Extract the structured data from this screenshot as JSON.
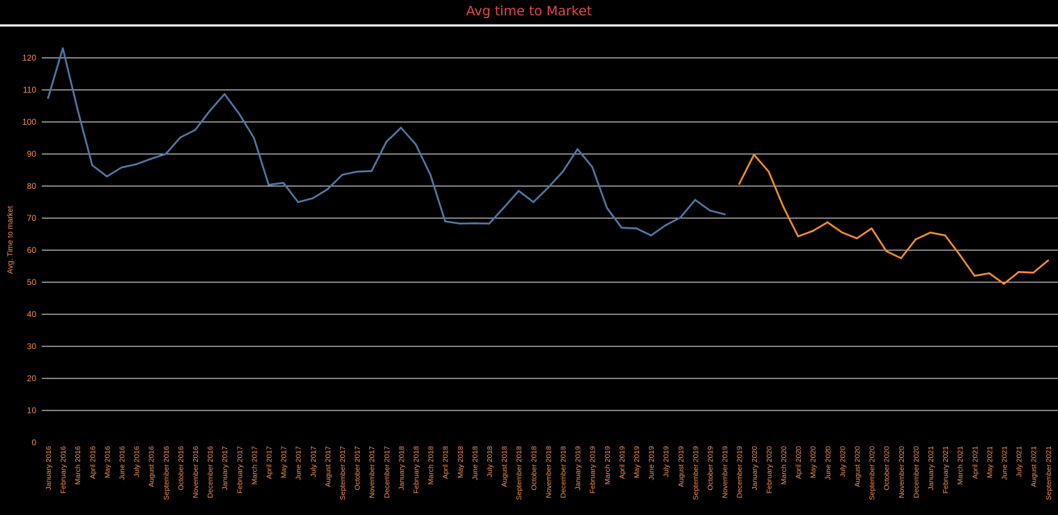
{
  "chart_data": {
    "type": "line",
    "title": "Avg time to Market",
    "xlabel": "",
    "ylabel": "Avg. Time to market",
    "ylim": [
      0,
      125
    ],
    "yticks": [
      0,
      10,
      20,
      30,
      40,
      50,
      60,
      70,
      80,
      90,
      100,
      110,
      120
    ],
    "grid": true,
    "categories": [
      "January 2016",
      "February 2016",
      "March 2016",
      "April 2016",
      "May 2016",
      "June 2016",
      "July 2016",
      "August 2016",
      "September 2016",
      "October 2016",
      "November 2016",
      "December 2016",
      "January 2017",
      "February 2017",
      "March 2017",
      "April 2017",
      "May 2017",
      "June 2017",
      "July 2017",
      "August 2017",
      "September 2017",
      "October 2017",
      "November 2017",
      "December 2017",
      "January 2018",
      "February 2018",
      "March 2018",
      "April 2018",
      "May 2018",
      "June 2018",
      "July 2018",
      "August 2018",
      "September 2018",
      "October 2018",
      "November 2018",
      "December 2018",
      "January 2019",
      "February 2019",
      "March 2019",
      "April 2019",
      "May 2019",
      "June 2019",
      "July 2019",
      "August 2019",
      "September 2019",
      "October 2019",
      "November 2019",
      "December 2019",
      "January 2020",
      "February 2020",
      "March 2020",
      "April 2020",
      "May 2020",
      "June 2020",
      "July 2020",
      "August 2020",
      "September 2020",
      "October 2020",
      "November 2020",
      "December 2020",
      "January 2021",
      "February 2021",
      "March 2021",
      "April 2021",
      "May 2021",
      "June 2021",
      "July 2021",
      "August 2021",
      "September 2021"
    ],
    "series": [
      {
        "color": "#4e79a7",
        "values": [
          107.5,
          123.0,
          104.0,
          86.5,
          83.0,
          85.8,
          86.8,
          88.5,
          90.0,
          95.2,
          97.5,
          103.5,
          108.7,
          102.5,
          95.0,
          80.4,
          81.0,
          75.0,
          76.2,
          79.0,
          83.5,
          84.5,
          84.7,
          93.8,
          98.2,
          93.0,
          83.5,
          69.0,
          68.3,
          68.4,
          68.3,
          73.3,
          78.5,
          75.0,
          79.5,
          84.5,
          91.5,
          86.0,
          73.2,
          67.0,
          66.8,
          64.6,
          67.8,
          70.2,
          75.7,
          72.4,
          71.2,
          null,
          null,
          null,
          null,
          null,
          null,
          null,
          null,
          null,
          null,
          null,
          null,
          null,
          null,
          null,
          null,
          null,
          null,
          null,
          null,
          null,
          null
        ]
      },
      {
        "color": "#f28e2b",
        "values": [
          null,
          null,
          null,
          null,
          null,
          null,
          null,
          null,
          null,
          null,
          null,
          null,
          null,
          null,
          null,
          null,
          null,
          null,
          null,
          null,
          null,
          null,
          null,
          null,
          null,
          null,
          null,
          null,
          null,
          null,
          null,
          null,
          null,
          null,
          null,
          null,
          null,
          null,
          null,
          null,
          null,
          null,
          null,
          null,
          null,
          null,
          null,
          80.7,
          89.8,
          84.5,
          73.5,
          64.3,
          66.0,
          68.7,
          65.5,
          63.7,
          66.8,
          59.7,
          57.5,
          63.4,
          65.5,
          64.6,
          58.5,
          52.0,
          52.8,
          49.5,
          53.2,
          53.0,
          56.8
        ]
      }
    ]
  },
  "colors": {
    "background": "#000000",
    "title": "#e8474c",
    "axis_text": "#f28e4e",
    "grid": "#ffffff",
    "rule": "#ffffff"
  }
}
